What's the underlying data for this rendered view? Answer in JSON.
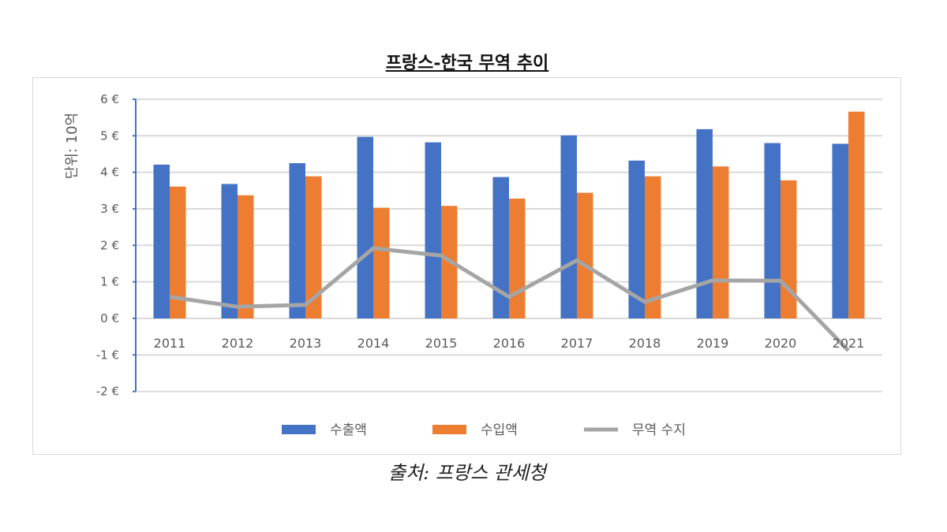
{
  "chart_data": {
    "type": "bar",
    "title": "프랑스-한국 무역 추이",
    "ylabel": "단위: 10억",
    "source": "출처: 프랑스 관세청",
    "categories": [
      "2011",
      "2012",
      "2013",
      "2014",
      "2015",
      "2016",
      "2017",
      "2018",
      "2019",
      "2020",
      "2021"
    ],
    "ylim": [
      -2,
      6
    ],
    "yticks": [
      "-2 €",
      "-1 €",
      "0 €",
      "1 €",
      "2 €",
      "3 €",
      "4 €",
      "5 €",
      "6 €"
    ],
    "grid": true,
    "legend": "bottom",
    "series": [
      {
        "name": "수출액",
        "type": "bar",
        "color": "#4472c4",
        "values": [
          4.21,
          3.68,
          4.25,
          4.97,
          4.82,
          3.87,
          5.01,
          4.32,
          5.18,
          4.8,
          4.78
        ]
      },
      {
        "name": "수입액",
        "type": "bar",
        "color": "#ed7d31",
        "values": [
          3.61,
          3.37,
          3.89,
          3.03,
          3.08,
          3.28,
          3.44,
          3.89,
          4.16,
          3.78,
          5.66
        ]
      },
      {
        "name": "무역 수지",
        "type": "line",
        "color": "#a5a5a5",
        "values": [
          0.59,
          0.32,
          0.37,
          1.92,
          1.72,
          0.59,
          1.59,
          0.45,
          1.04,
          1.03,
          -0.88
        ]
      }
    ]
  }
}
